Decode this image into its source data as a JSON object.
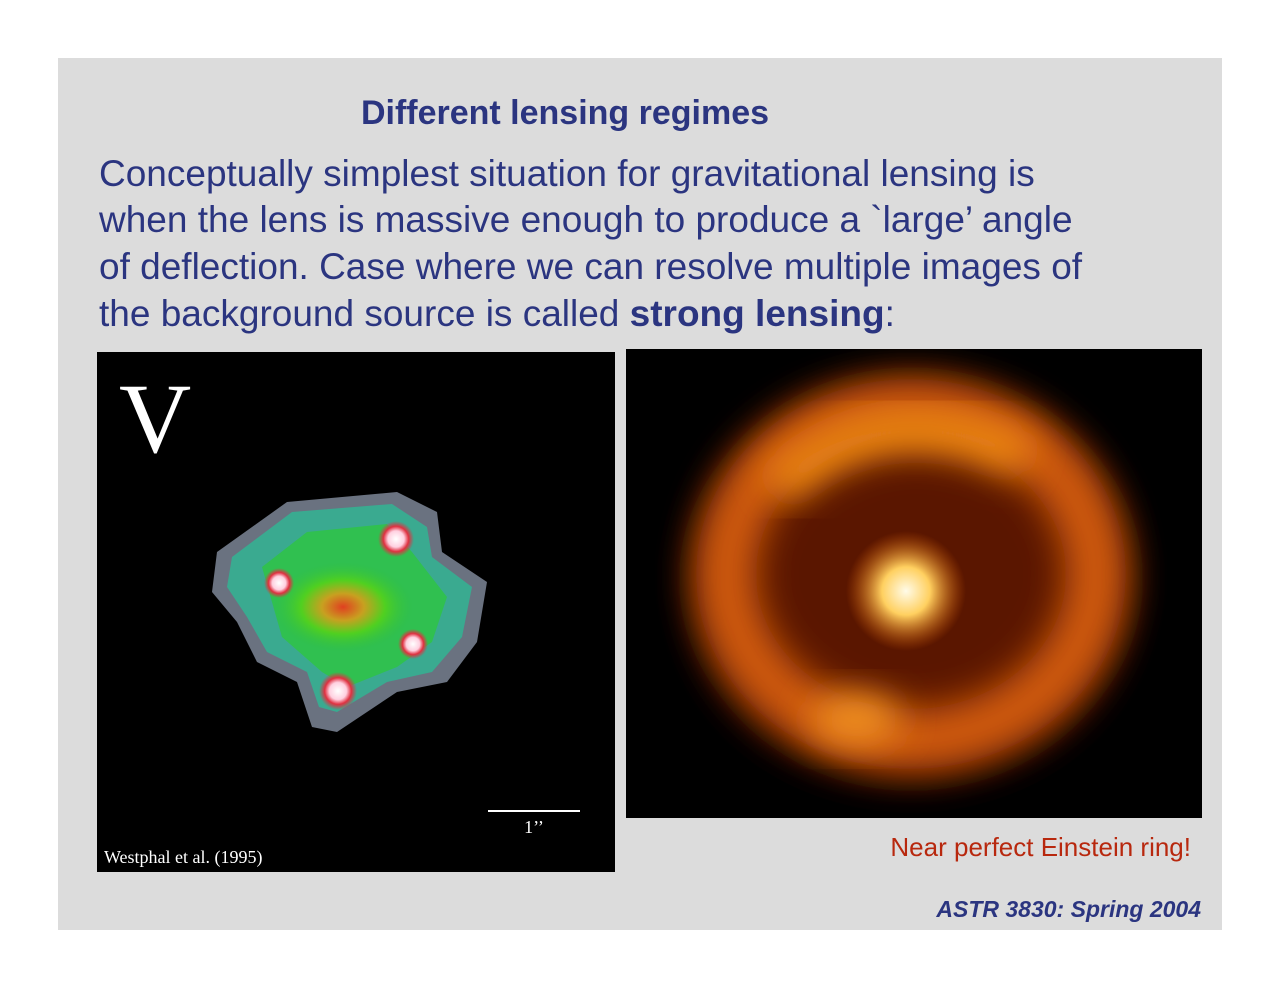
{
  "title": "Different lensing regimes",
  "body": {
    "lines": [
      "Conceptually simplest situation for gravitational lensing is",
      "when the lens is massive enough to produce a `large’ angle",
      "of deflection. Case where we can resolve multiple images of"
    ],
    "last_line": {
      "before": "the background source is called ",
      "bold": "strong lensing",
      "after": ":"
    }
  },
  "left_image": {
    "band": "V",
    "scale_label": "1’’",
    "credit": "Westphal et al. (1995)"
  },
  "right_image": {
    "caption": "Near perfect Einstein ring!"
  },
  "footer": "ASTR 3830: Spring 2004"
}
